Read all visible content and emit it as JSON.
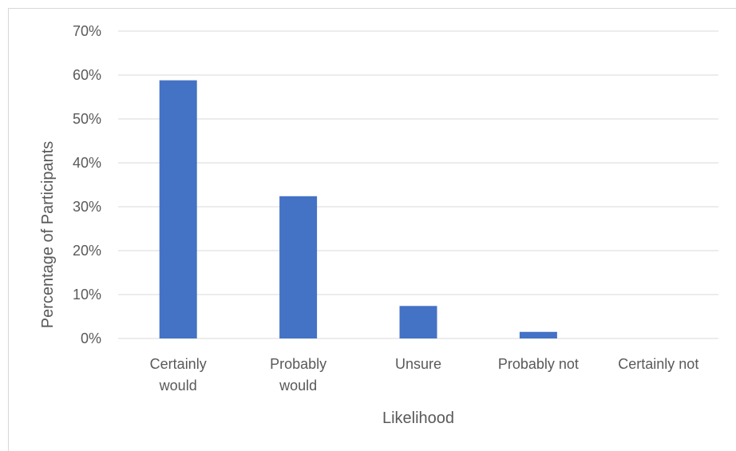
{
  "chart_data": {
    "type": "bar",
    "title": "",
    "xlabel": "Likelihood",
    "ylabel": "Percentage of Participants",
    "categories": [
      [
        "Certainly",
        "would"
      ],
      [
        "Probably",
        "would"
      ],
      [
        "Unsure"
      ],
      [
        "Probably not"
      ],
      [
        "Certainly not"
      ]
    ],
    "values": [
      58.8,
      32.4,
      7.4,
      1.5,
      0
    ],
    "ylim": [
      0,
      70
    ],
    "yticks": [
      "0%",
      "10%",
      "20%",
      "30%",
      "40%",
      "50%",
      "60%",
      "70%"
    ],
    "ytick_values": [
      0,
      10,
      20,
      30,
      40,
      50,
      60,
      70
    ],
    "grid": true,
    "legend": "none",
    "bar_color": "#4472c4",
    "grid_color": "#d9d9d9",
    "text_color": "#595959"
  }
}
